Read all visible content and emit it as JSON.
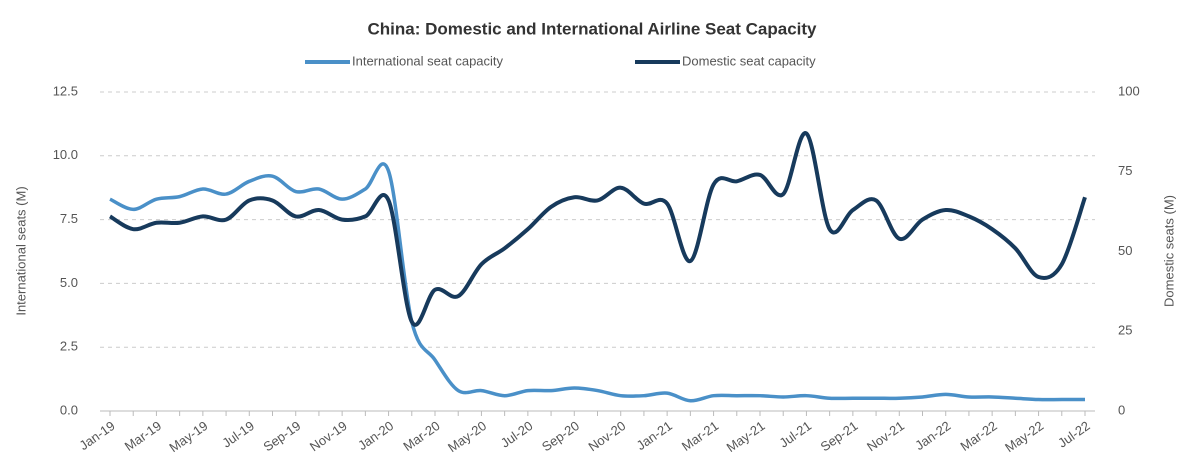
{
  "chart_data": {
    "type": "line",
    "title": "China: Domestic and International Airline Seat Capacity",
    "categories": [
      "Jan-19",
      null,
      "Mar-19",
      null,
      "May-19",
      null,
      "Jul-19",
      null,
      "Sep-19",
      null,
      "Nov-19",
      null,
      "Jan-20",
      null,
      "Mar-20",
      null,
      "May-20",
      null,
      "Jul-20",
      null,
      "Sep-20",
      null,
      "Nov-20",
      null,
      "Jan-21",
      null,
      "Mar-21",
      null,
      "May-21",
      null,
      "Jul-21",
      null,
      "Sep-21",
      null,
      "Nov-21",
      null,
      "Jan-22",
      null,
      "Mar-22",
      null,
      "May-22",
      null,
      "Jul-22"
    ],
    "series": [
      {
        "name": "International seat capacity",
        "color": "#4a90c8",
        "axis": "y",
        "values": [
          8.3,
          7.9,
          8.3,
          8.4,
          8.7,
          8.5,
          9.0,
          9.2,
          8.6,
          8.7,
          8.3,
          8.7,
          9.4,
          3.5,
          2.0,
          0.8,
          0.8,
          0.6,
          0.8,
          0.8,
          0.9,
          0.8,
          0.6,
          0.6,
          0.7,
          0.4,
          0.6,
          0.6,
          0.6,
          0.55,
          0.6,
          0.5,
          0.5,
          0.5,
          0.5,
          0.55,
          0.65,
          0.55,
          0.55,
          0.5,
          0.45,
          0.45,
          0.45
        ]
      },
      {
        "name": "Domestic seat capacity",
        "color": "#173a5c",
        "axis": "y2",
        "values": [
          61,
          57,
          59,
          59,
          61,
          60,
          66,
          66,
          61,
          63,
          60,
          61,
          66,
          28,
          38,
          36,
          46,
          51,
          57,
          64,
          67,
          66,
          70,
          65,
          65,
          47,
          71,
          72,
          74,
          68,
          87,
          57,
          63,
          66,
          54,
          60,
          63,
          61,
          57,
          51,
          42,
          46,
          67
        ]
      }
    ],
    "ylabel": "International seats (M)",
    "y2label": "Domestic seats (M)",
    "ylim": [
      0,
      12.5
    ],
    "yticks": [
      {
        "value": 0,
        "label": "0.0"
      },
      2.5,
      {
        "value": 5,
        "label": "5.0"
      },
      7.5,
      {
        "value": 10,
        "label": "10.0"
      },
      12.5
    ],
    "y2lim": [
      0,
      100
    ],
    "y2ticks": [
      0,
      25,
      50,
      75,
      100
    ],
    "grid": true
  }
}
